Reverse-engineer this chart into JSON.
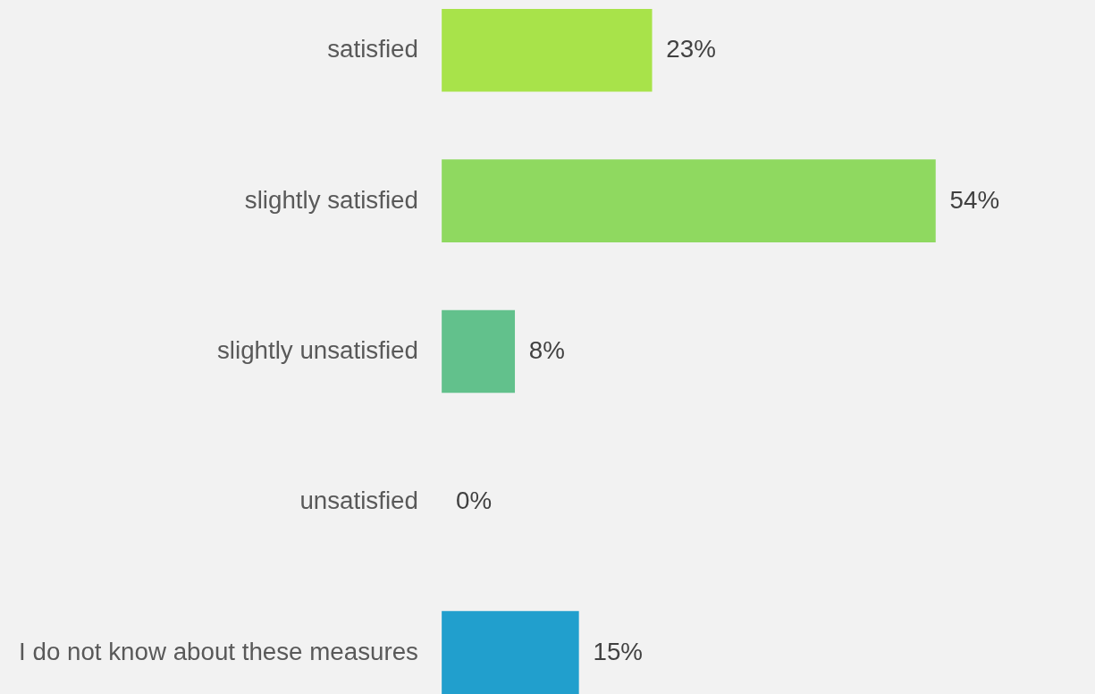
{
  "chart_data": {
    "type": "bar",
    "orientation": "horizontal",
    "categories": [
      "satisfied",
      "slightly satisfied",
      "slightly unsatisfied",
      "unsatisfied",
      "I do not know about these measures"
    ],
    "values": [
      23,
      54,
      8,
      0,
      15
    ],
    "colors": [
      "#a8e34a",
      "#8fd960",
      "#62c18c",
      "#44b0a8",
      "#219fcd"
    ],
    "value_labels": [
      "23%",
      "54%",
      "8%",
      "0%",
      "15%"
    ]
  }
}
